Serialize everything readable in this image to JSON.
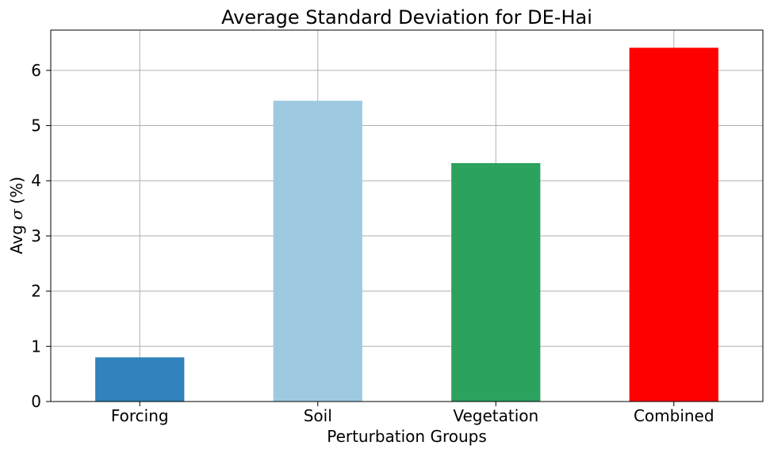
{
  "chart_data": {
    "type": "bar",
    "title": "Average Standard Deviation for DE-Hai",
    "xlabel": "Perturbation Groups",
    "ylabel_prefix": "Avg ",
    "ylabel_symbol": "σ",
    "ylabel_suffix": " (%)",
    "categories": [
      "Forcing",
      "Soil",
      "Vegetation",
      "Combined"
    ],
    "values": [
      0.8,
      5.45,
      4.32,
      6.41
    ],
    "colors": [
      "#3182bd",
      "#9ecae1",
      "#2ca25f",
      "#ff0000"
    ],
    "ylim": [
      0,
      6.73
    ],
    "yticks": [
      0,
      1,
      2,
      3,
      4,
      5,
      6
    ],
    "grid": true
  }
}
